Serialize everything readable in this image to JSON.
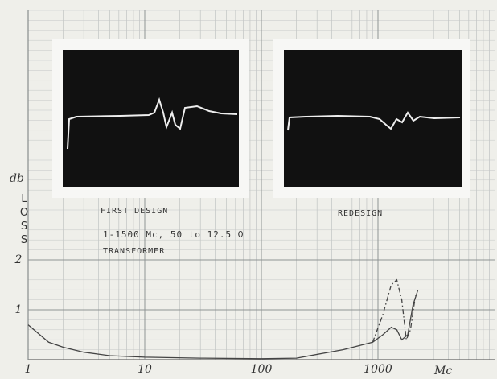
{
  "chart_data": {
    "type": "line",
    "x_label": "Mc",
    "y_label": "db",
    "y_label_2": "LOSS",
    "annotations": [
      "FIRST DESIGN",
      "REDESIGN",
      "1-1500 Mc, 50 to 12.5 Ω",
      "TRANSFORMER"
    ],
    "x_scale": "log",
    "grid": true,
    "xlim": [
      1,
      10000
    ],
    "xticks": [
      1,
      10,
      100,
      1000
    ],
    "ylim": [
      0,
      7
    ],
    "yticks": [
      1,
      2
    ],
    "series": [
      {
        "color": "#444444",
        "dash": "solid",
        "x": [
          1,
          1.5,
          2,
          3,
          5,
          10,
          30,
          100,
          200,
          500,
          900,
          1100,
          1300,
          1450,
          1600,
          1800,
          2000,
          2200
        ],
        "values": [
          0.7,
          0.35,
          0.25,
          0.15,
          0.08,
          0.05,
          0.03,
          0.02,
          0.03,
          0.2,
          0.35,
          0.5,
          0.65,
          0.6,
          0.4,
          0.5,
          1.1,
          1.4
        ]
      },
      {
        "color": "#444444",
        "dash": "dashdot",
        "x": [
          900,
          1100,
          1300,
          1450,
          1600,
          1750,
          1900,
          2100
        ],
        "values": [
          0.35,
          0.9,
          1.5,
          1.6,
          1.2,
          0.4,
          0.6,
          1.3
        ]
      }
    ]
  }
}
